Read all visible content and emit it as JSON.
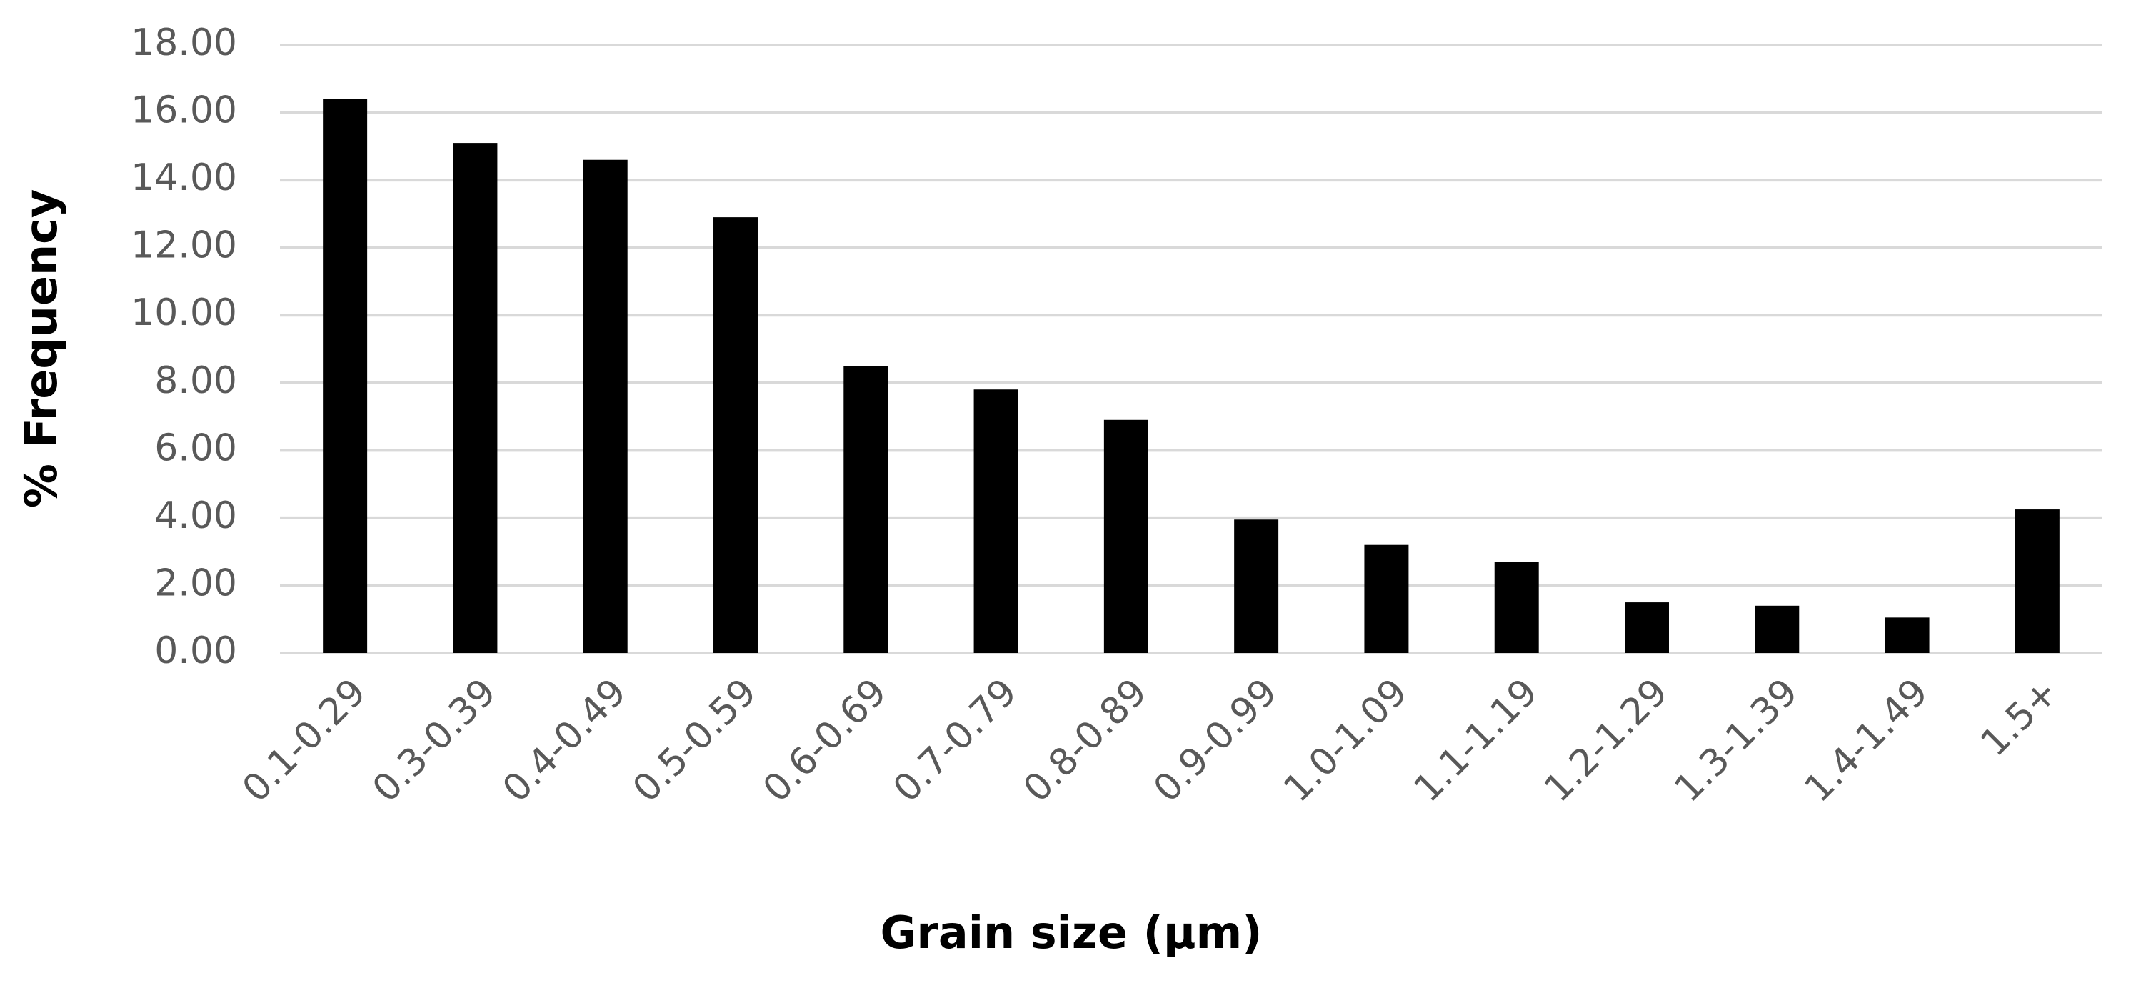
{
  "chart_data": {
    "type": "bar",
    "xlabel": "Grain size (μm)",
    "ylabel": "% Frequency",
    "categories": [
      "0.1-0.29",
      "0.3-0.39",
      "0.4-0.49",
      "0.5-0.59",
      "0.6-0.69",
      "0.7-0.79",
      "0.8-0.89",
      "0.9-0.99",
      "1.0-1.09",
      "1.1-1.19",
      "1.2-1.29",
      "1.3-1.39",
      "1.4-1.49",
      "1.5+"
    ],
    "values": [
      16.4,
      15.1,
      14.6,
      12.9,
      8.5,
      7.8,
      6.9,
      3.95,
      3.2,
      2.7,
      1.5,
      1.4,
      1.05,
      4.25
    ],
    "color": "#000000",
    "ylim": [
      0,
      18
    ],
    "yticks": [
      {
        "value": 0,
        "label": "0.00"
      },
      {
        "value": 2,
        "label": "2.00"
      },
      {
        "value": 4,
        "label": "4.00"
      },
      {
        "value": 6,
        "label": "6.00"
      },
      {
        "value": 8,
        "label": "8.00"
      },
      {
        "value": 10,
        "label": "10.00"
      },
      {
        "value": 12,
        "label": "12.00"
      },
      {
        "value": 14,
        "label": "14.00"
      },
      {
        "value": 16,
        "label": "16.00"
      },
      {
        "value": 18,
        "label": "18.00"
      }
    ],
    "grid": true
  }
}
